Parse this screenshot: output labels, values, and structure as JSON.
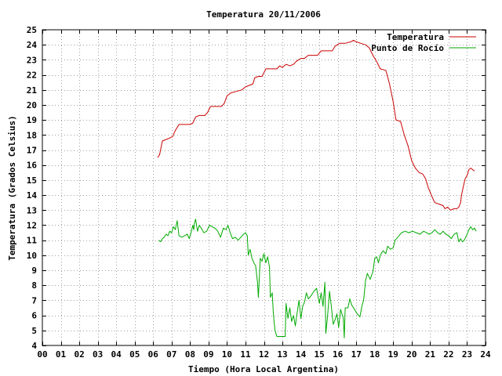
{
  "chart_data": {
    "type": "line",
    "title": "Temperatura 20/11/2006",
    "xlabel": "Tiempo (Hora Local Argentina)",
    "ylabel": "Temperatura (Grados Celsius)",
    "xlim": [
      0,
      24
    ],
    "ylim": [
      4,
      25
    ],
    "grid": true,
    "legend_position": "top-right",
    "x_ticks": [
      0,
      1,
      2,
      3,
      4,
      5,
      6,
      7,
      8,
      9,
      10,
      11,
      12,
      13,
      14,
      15,
      16,
      17,
      18,
      19,
      20,
      21,
      22,
      23,
      24
    ],
    "x_tick_labels": [
      "00",
      "01",
      "02",
      "03",
      "04",
      "05",
      "06",
      "07",
      "08",
      "09",
      "10",
      "11",
      "12",
      "13",
      "14",
      "15",
      "16",
      "17",
      "18",
      "19",
      "20",
      "21",
      "22",
      "23",
      "24"
    ],
    "y_ticks": [
      4,
      5,
      6,
      7,
      8,
      9,
      10,
      11,
      12,
      13,
      14,
      15,
      16,
      17,
      18,
      19,
      20,
      21,
      22,
      23,
      24,
      25
    ],
    "y_tick_labels": [
      "4",
      "5",
      "6",
      "7",
      "8",
      "9",
      "10",
      "11",
      "12",
      "13",
      "14",
      "15",
      "16",
      "17",
      "18",
      "19",
      "20",
      "21",
      "22",
      "23",
      "24",
      "25"
    ],
    "series": [
      {
        "name": "Temperatura",
        "color": "#cc0000",
        "points": [
          [
            6.25,
            16.5
          ],
          [
            6.35,
            16.7
          ],
          [
            6.5,
            17.6
          ],
          [
            6.7,
            17.7
          ],
          [
            6.9,
            17.8
          ],
          [
            7.05,
            17.9
          ],
          [
            7.2,
            18.3
          ],
          [
            7.4,
            18.7
          ],
          [
            7.7,
            18.7
          ],
          [
            8.0,
            18.7
          ],
          [
            8.15,
            18.8
          ],
          [
            8.3,
            19.2
          ],
          [
            8.5,
            19.3
          ],
          [
            8.8,
            19.3
          ],
          [
            8.95,
            19.5
          ],
          [
            9.1,
            19.9
          ],
          [
            9.4,
            19.9
          ],
          [
            9.7,
            19.9
          ],
          [
            9.85,
            20.1
          ],
          [
            10.0,
            20.6
          ],
          [
            10.2,
            20.8
          ],
          [
            10.5,
            20.9
          ],
          [
            10.8,
            21.0
          ],
          [
            11.0,
            21.2
          ],
          [
            11.2,
            21.3
          ],
          [
            11.4,
            21.4
          ],
          [
            11.5,
            21.8
          ],
          [
            11.7,
            21.9
          ],
          [
            11.9,
            21.9
          ],
          [
            12.1,
            22.4
          ],
          [
            12.4,
            22.4
          ],
          [
            12.7,
            22.4
          ],
          [
            12.85,
            22.6
          ],
          [
            13.0,
            22.5
          ],
          [
            13.2,
            22.7
          ],
          [
            13.4,
            22.6
          ],
          [
            13.6,
            22.7
          ],
          [
            13.75,
            22.9
          ],
          [
            14.0,
            23.1
          ],
          [
            14.2,
            23.1
          ],
          [
            14.4,
            23.3
          ],
          [
            14.6,
            23.3
          ],
          [
            14.9,
            23.3
          ],
          [
            15.1,
            23.6
          ],
          [
            15.4,
            23.6
          ],
          [
            15.7,
            23.6
          ],
          [
            15.85,
            23.9
          ],
          [
            16.1,
            24.1
          ],
          [
            16.4,
            24.1
          ],
          [
            16.7,
            24.2
          ],
          [
            16.85,
            24.3
          ],
          [
            17.0,
            24.2
          ],
          [
            17.25,
            24.1
          ],
          [
            17.5,
            24.0
          ],
          [
            17.7,
            23.8
          ],
          [
            17.9,
            23.3
          ],
          [
            18.1,
            22.9
          ],
          [
            18.3,
            22.4
          ],
          [
            18.6,
            22.3
          ],
          [
            18.8,
            21.4
          ],
          [
            19.0,
            20.2
          ],
          [
            19.15,
            19.0
          ],
          [
            19.4,
            18.9
          ],
          [
            19.6,
            18.0
          ],
          [
            19.8,
            17.3
          ],
          [
            20.0,
            16.3
          ],
          [
            20.2,
            15.8
          ],
          [
            20.4,
            15.5
          ],
          [
            20.6,
            15.4
          ],
          [
            20.75,
            15.1
          ],
          [
            20.9,
            14.5
          ],
          [
            21.0,
            14.2
          ],
          [
            21.1,
            13.9
          ],
          [
            21.25,
            13.5
          ],
          [
            21.5,
            13.4
          ],
          [
            21.7,
            13.3
          ],
          [
            21.8,
            13.1
          ],
          [
            21.95,
            13.2
          ],
          [
            22.1,
            13.0
          ],
          [
            22.3,
            13.1
          ],
          [
            22.45,
            13.1
          ],
          [
            22.55,
            13.2
          ],
          [
            22.65,
            13.5
          ],
          [
            22.7,
            14.0
          ],
          [
            22.8,
            14.6
          ],
          [
            22.9,
            15.1
          ],
          [
            23.0,
            15.3
          ],
          [
            23.1,
            15.7
          ],
          [
            23.2,
            15.8
          ],
          [
            23.3,
            15.7
          ],
          [
            23.4,
            15.6
          ]
        ]
      },
      {
        "name": "Punto de Rocío",
        "color": "#00aa00",
        "points": [
          [
            6.3,
            11.0
          ],
          [
            6.4,
            10.9
          ],
          [
            6.5,
            11.1
          ],
          [
            6.6,
            11.2
          ],
          [
            6.7,
            11.4
          ],
          [
            6.8,
            11.3
          ],
          [
            6.9,
            11.6
          ],
          [
            7.0,
            11.5
          ],
          [
            7.1,
            11.9
          ],
          [
            7.2,
            11.7
          ],
          [
            7.3,
            12.3
          ],
          [
            7.4,
            11.3
          ],
          [
            7.55,
            11.2
          ],
          [
            7.7,
            11.3
          ],
          [
            7.85,
            11.4
          ],
          [
            7.95,
            11.1
          ],
          [
            8.05,
            11.5
          ],
          [
            8.15,
            12.0
          ],
          [
            8.2,
            11.7
          ],
          [
            8.25,
            12.2
          ],
          [
            8.3,
            12.4
          ],
          [
            8.4,
            11.6
          ],
          [
            8.5,
            12.0
          ],
          [
            8.6,
            11.8
          ],
          [
            8.75,
            11.5
          ],
          [
            8.9,
            11.6
          ],
          [
            9.05,
            12.0
          ],
          [
            9.2,
            11.9
          ],
          [
            9.35,
            11.8
          ],
          [
            9.5,
            11.6
          ],
          [
            9.65,
            11.2
          ],
          [
            9.8,
            11.8
          ],
          [
            9.95,
            11.7
          ],
          [
            10.05,
            12.0
          ],
          [
            10.2,
            11.4
          ],
          [
            10.3,
            11.1
          ],
          [
            10.45,
            11.2
          ],
          [
            10.6,
            11.0
          ],
          [
            10.75,
            11.2
          ],
          [
            10.9,
            11.4
          ],
          [
            11.0,
            11.5
          ],
          [
            11.1,
            11.3
          ],
          [
            11.15,
            10.0
          ],
          [
            11.25,
            10.4
          ],
          [
            11.35,
            9.8
          ],
          [
            11.45,
            9.5
          ],
          [
            11.55,
            9.3
          ],
          [
            11.65,
            8.2
          ],
          [
            11.7,
            7.2
          ],
          [
            11.8,
            9.8
          ],
          [
            11.9,
            9.6
          ],
          [
            12.0,
            10.1
          ],
          [
            12.1,
            9.5
          ],
          [
            12.2,
            9.9
          ],
          [
            12.3,
            9.2
          ],
          [
            12.35,
            7.2
          ],
          [
            12.45,
            7.5
          ],
          [
            12.5,
            6.3
          ],
          [
            12.55,
            5.6
          ],
          [
            12.6,
            5.0
          ],
          [
            12.7,
            4.6
          ],
          [
            13.0,
            4.6
          ],
          [
            13.15,
            4.6
          ],
          [
            13.2,
            6.8
          ],
          [
            13.3,
            5.8
          ],
          [
            13.4,
            6.5
          ],
          [
            13.5,
            5.6
          ],
          [
            13.6,
            6.0
          ],
          [
            13.7,
            5.3
          ],
          [
            13.8,
            6.2
          ],
          [
            13.9,
            7.0
          ],
          [
            14.0,
            5.8
          ],
          [
            14.1,
            6.6
          ],
          [
            14.2,
            6.9
          ],
          [
            14.3,
            7.5
          ],
          [
            14.4,
            7.1
          ],
          [
            14.55,
            7.3
          ],
          [
            14.7,
            7.6
          ],
          [
            14.85,
            7.8
          ],
          [
            15.0,
            6.8
          ],
          [
            15.1,
            7.5
          ],
          [
            15.2,
            6.6
          ],
          [
            15.3,
            8.2
          ],
          [
            15.35,
            4.8
          ],
          [
            15.45,
            6.0
          ],
          [
            15.55,
            7.6
          ],
          [
            15.65,
            6.6
          ],
          [
            15.75,
            5.4
          ],
          [
            15.85,
            5.7
          ],
          [
            15.95,
            6.1
          ],
          [
            16.05,
            5.2
          ],
          [
            16.15,
            6.4
          ],
          [
            16.3,
            5.8
          ],
          [
            16.35,
            4.5
          ],
          [
            16.4,
            6.5
          ],
          [
            16.55,
            6.5
          ],
          [
            16.65,
            7.1
          ],
          [
            16.75,
            6.7
          ],
          [
            16.9,
            6.4
          ],
          [
            17.05,
            6.1
          ],
          [
            17.2,
            5.9
          ],
          [
            17.3,
            6.6
          ],
          [
            17.4,
            7.0
          ],
          [
            17.5,
            8.3
          ],
          [
            17.6,
            8.8
          ],
          [
            17.75,
            8.4
          ],
          [
            17.9,
            8.9
          ],
          [
            18.0,
            9.8
          ],
          [
            18.1,
            9.9
          ],
          [
            18.2,
            9.5
          ],
          [
            18.3,
            10.0
          ],
          [
            18.45,
            10.3
          ],
          [
            18.6,
            10.1
          ],
          [
            18.7,
            10.6
          ],
          [
            18.85,
            10.4
          ],
          [
            19.0,
            10.5
          ],
          [
            19.1,
            11.0
          ],
          [
            19.25,
            11.2
          ],
          [
            19.45,
            11.5
          ],
          [
            19.65,
            11.6
          ],
          [
            19.85,
            11.5
          ],
          [
            20.05,
            11.6
          ],
          [
            20.25,
            11.5
          ],
          [
            20.45,
            11.4
          ],
          [
            20.65,
            11.6
          ],
          [
            20.8,
            11.5
          ],
          [
            20.95,
            11.4
          ],
          [
            21.1,
            11.5
          ],
          [
            21.25,
            11.7
          ],
          [
            21.4,
            11.5
          ],
          [
            21.55,
            11.4
          ],
          [
            21.7,
            11.6
          ],
          [
            21.85,
            11.4
          ],
          [
            22.0,
            11.3
          ],
          [
            22.15,
            11.1
          ],
          [
            22.3,
            11.4
          ],
          [
            22.45,
            11.5
          ],
          [
            22.55,
            10.9
          ],
          [
            22.65,
            11.1
          ],
          [
            22.75,
            10.9
          ],
          [
            22.85,
            11.0
          ],
          [
            23.0,
            11.4
          ],
          [
            23.1,
            11.7
          ],
          [
            23.2,
            11.9
          ],
          [
            23.3,
            11.7
          ],
          [
            23.4,
            11.8
          ],
          [
            23.5,
            11.6
          ]
        ]
      }
    ]
  }
}
